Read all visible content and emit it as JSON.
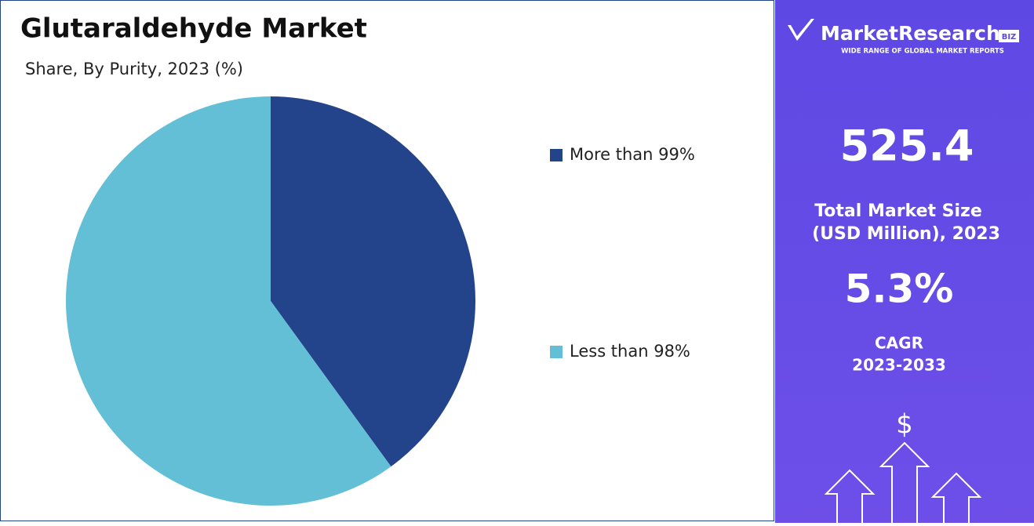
{
  "chart_data": {
    "type": "pie",
    "title": "Glutaraldehyde Market",
    "subtitle": "Share, By Purity, 2023 (%)",
    "categories": [
      "More than 99%",
      "Less than 98%"
    ],
    "values": [
      40,
      60
    ],
    "colors": [
      "#23448b",
      "#62bfd6"
    ]
  },
  "sidebar": {
    "brand": "MarketResearch",
    "brand_tag": "BIZ",
    "tagline": "WIDE RANGE OF GLOBAL MARKET REPORTS",
    "market_size": "525.4",
    "market_size_label": [
      "Total Market Size",
      "(USD Million), 2023"
    ],
    "cagr": "5.3%",
    "cagr_label": [
      "CAGR",
      "2023-2033"
    ],
    "icon": "$"
  }
}
